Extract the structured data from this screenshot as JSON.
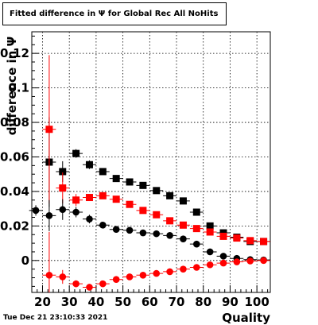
{
  "chart_data": {
    "type": "scatter",
    "title": "Fitted difference in Ψ  for Global Rec All NoHits",
    "xlabel": "Quality",
    "ylabel": "difference in Ψ",
    "xlim": [
      16,
      105
    ],
    "ylim": [
      -0.0185,
      0.1325
    ],
    "grid": true,
    "x_ticks": [
      20,
      30,
      40,
      50,
      60,
      70,
      80,
      90,
      100
    ],
    "y_ticks": [
      0,
      0.02,
      0.04,
      0.06,
      0.08,
      0.1,
      0.12
    ],
    "y_tick_labels": [
      "0",
      "0.02",
      "0.04",
      "0.06",
      "0.08",
      "0.1",
      "0.12"
    ],
    "series": [
      {
        "color": "#000000",
        "marker": "square",
        "x": [
          22.5,
          27.5,
          32.5,
          37.5,
          42.5,
          47.5,
          52.5,
          57.5,
          62.5,
          67.5,
          72.5,
          77.5,
          82.5,
          87.5,
          92.5,
          97.5,
          102.5
        ],
        "y": [
          0.057,
          0.0515,
          0.062,
          0.0555,
          0.0515,
          0.0475,
          0.0455,
          0.0435,
          0.0405,
          0.0375,
          0.0345,
          0.028,
          0.02,
          0.016,
          0.0135,
          0.011,
          0.011
        ],
        "err": [
          0.026,
          0.006,
          0.0025,
          0.0025,
          0.0015,
          0.0012,
          0.0012,
          0.0012,
          0.0012,
          0.0012,
          0.0012,
          0.0012,
          0.0012,
          0.0012,
          0.0012,
          0.0012,
          0.0012
        ]
      },
      {
        "color": "#ff0000",
        "marker": "square",
        "x": [
          22.5,
          27.5,
          32.5,
          37.5,
          42.5,
          47.5,
          52.5,
          57.5,
          62.5,
          67.5,
          72.5,
          77.5,
          82.5,
          87.5,
          92.5,
          97.5,
          102.5
        ],
        "y": [
          0.076,
          0.042,
          0.035,
          0.0365,
          0.0375,
          0.0355,
          0.0325,
          0.029,
          0.0265,
          0.023,
          0.0205,
          0.0185,
          0.0165,
          0.014,
          0.013,
          0.0115,
          0.011
        ],
        "err": [
          0.043,
          0.009,
          0.0035,
          0.002,
          0.0015,
          0.0012,
          0.0012,
          0.0012,
          0.0012,
          0.0012,
          0.0012,
          0.0012,
          0.0012,
          0.0012,
          0.0012,
          0.0012,
          0.0012
        ]
      },
      {
        "color": "#000000",
        "marker": "circle",
        "x": [
          17.5,
          22.5,
          27.5,
          32.5,
          37.5,
          42.5,
          47.5,
          52.5,
          57.5,
          62.5,
          67.5,
          72.5,
          77.5,
          82.5,
          87.5,
          92.5,
          97.5,
          102.5
        ],
        "y": [
          0.029,
          0.026,
          0.0295,
          0.028,
          0.024,
          0.0205,
          0.018,
          0.0175,
          0.016,
          0.0155,
          0.0145,
          0.0125,
          0.0095,
          0.005,
          0.0025,
          0.0012,
          0.0005,
          0.0003
        ],
        "err": [
          0.003,
          0.009,
          0.006,
          0.003,
          0.0025,
          0.0015,
          0.0012,
          0.0012,
          0.0012,
          0.0012,
          0.0012,
          0.0012,
          0.0012,
          0.0012,
          0.0012,
          0.0012,
          0.0012,
          0.0012
        ]
      },
      {
        "color": "#ff0000",
        "marker": "circle",
        "x": [
          22.5,
          27.5,
          32.5,
          37.5,
          42.5,
          47.5,
          52.5,
          57.5,
          62.5,
          67.5,
          72.5,
          77.5,
          82.5,
          87.5,
          92.5,
          97.5,
          102.5
        ],
        "y": [
          -0.0085,
          -0.0095,
          -0.0135,
          -0.0155,
          -0.0135,
          -0.011,
          -0.0095,
          -0.0085,
          -0.0075,
          -0.0065,
          -0.005,
          -0.004,
          -0.0025,
          -0.0015,
          -0.0008,
          -0.0003,
          0.0
        ],
        "err": [
          0.025,
          0.004,
          0.002,
          0.0015,
          0.0012,
          0.0012,
          0.0012,
          0.0012,
          0.0012,
          0.0012,
          0.0012,
          0.0012,
          0.0012,
          0.0012,
          0.0012,
          0.0012,
          0.0012
        ]
      }
    ]
  },
  "footer": {
    "date": "Tue Dec 21 23:10:33 2021"
  }
}
